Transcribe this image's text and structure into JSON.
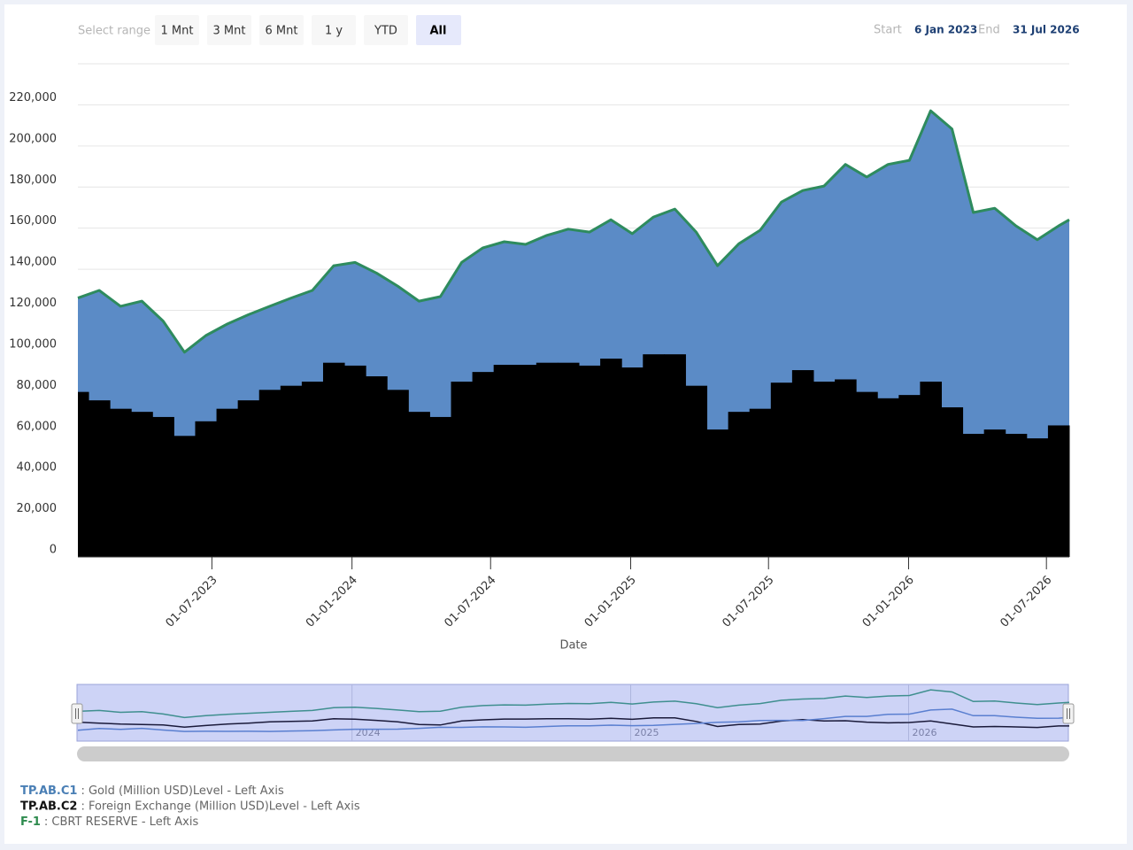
{
  "chart_data": {
    "type": "stock",
    "range_selector": {
      "label": "Select range",
      "buttons": [
        "1 Mnt",
        "3 Mnt",
        "6 Mnt",
        "1 y",
        "YTD",
        "All"
      ],
      "selected": 5
    },
    "start_label": "Start",
    "start": "6 Jan 2023",
    "end_label": "End",
    "end": "31 Jul 2026",
    "x_label": "Date",
    "x": [
      "2023-01-06",
      "2023-02-03",
      "2023-03-03",
      "2023-03-31",
      "2023-04-28",
      "2023-05-26",
      "2023-06-23",
      "2023-07-21",
      "2023-08-18",
      "2023-09-15",
      "2023-10-13",
      "2023-11-10",
      "2023-12-08",
      "2024-01-05",
      "2024-02-02",
      "2024-03-01",
      "2024-03-29",
      "2024-04-26",
      "2024-05-24",
      "2024-06-21",
      "2024-07-19",
      "2024-08-16",
      "2024-09-13",
      "2024-10-11",
      "2024-11-08",
      "2024-12-06",
      "2025-01-03",
      "2025-01-31",
      "2025-02-28",
      "2025-03-28",
      "2025-04-25",
      "2025-05-23",
      "2025-06-20",
      "2025-07-18",
      "2025-08-15",
      "2025-09-12",
      "2025-10-10",
      "2025-11-07",
      "2025-12-05",
      "2026-01-02",
      "2026-01-30",
      "2026-02-27",
      "2026-03-27",
      "2026-04-24",
      "2026-05-22",
      "2026-06-19",
      "2026-07-17",
      "2026-07-31"
    ],
    "xlim": [
      "2023-01-06",
      "2026-07-31"
    ],
    "xticks": [
      {
        "value": "2023-07-01",
        "label": "01-07-2023"
      },
      {
        "value": "2024-01-01",
        "label": "01-01-2024"
      },
      {
        "value": "2024-07-01",
        "label": "01-07-2024"
      },
      {
        "value": "2025-01-01",
        "label": "01-01-2025"
      },
      {
        "value": "2025-07-01",
        "label": "01-07-2025"
      },
      {
        "value": "2026-01-01",
        "label": "01-01-2026"
      },
      {
        "value": "2026-07-01",
        "label": "01-07-2026"
      }
    ],
    "navigator_ticks": [
      {
        "value": "2024-01-01",
        "label": "2024"
      },
      {
        "value": "2025-01-01",
        "label": "2025"
      },
      {
        "value": "2026-01-01",
        "label": "2026"
      }
    ],
    "ylim": [
      0,
      240000
    ],
    "yticks": [
      0,
      {
        "value": 20000,
        "label": "20,000"
      },
      {
        "value": 40000,
        "label": "40,000"
      },
      {
        "value": 60000,
        "label": "60,000"
      },
      {
        "value": 80000,
        "label": "80,000"
      },
      {
        "value": 100000,
        "label": "100,000"
      },
      {
        "value": 120000,
        "label": "120,000"
      },
      {
        "value": 140000,
        "label": "140,000"
      },
      {
        "value": 160000,
        "label": "160,000"
      },
      {
        "value": 180000,
        "label": "180,000"
      },
      {
        "value": 200000,
        "label": "200,000"
      },
      {
        "value": 220000,
        "label": "220,000"
      }
    ],
    "grid": true,
    "series": [
      {
        "name": "TP.AB.C1",
        "description": ": Gold (Million USD)Level - Left Axis",
        "type": "area",
        "color": "#5b8bc6",
        "legend_color": "#4a7fb5",
        "values": [
          45700,
          53500,
          49900,
          53900,
          46700,
          40700,
          41700,
          41200,
          41700,
          40700,
          42700,
          44400,
          47200,
          50200,
          50300,
          50500,
          53900,
          58600,
          58000,
          60400,
          59900,
          58600,
          62000,
          65000,
          65000,
          67600,
          65100,
          66800,
          70700,
          74800,
          79700,
          81800,
          86900,
          87900,
          87400,
          95200,
          104600,
          104600,
          113800,
          114200,
          131800,
          135500,
          107700,
          107700,
          101200,
          96700,
          97100,
          100100
        ]
      },
      {
        "name": "TP.AB.C2",
        "description": ": Foreign Exchange (Million USD)Level - Left Axis",
        "type": "column",
        "color": "#000000",
        "legend_color": "#111111",
        "values": [
          80300,
          76200,
          72100,
          70600,
          68100,
          58900,
          66000,
          72100,
          76200,
          81300,
          83300,
          85300,
          94500,
          93100,
          87900,
          81300,
          70600,
          68100,
          85300,
          90000,
          93500,
          93500,
          94500,
          94500,
          93100,
          96500,
          92200,
          98600,
          98600,
          83300,
          62000,
          70600,
          72100,
          84800,
          90900,
          85300,
          86400,
          80300,
          77200,
          78800,
          85300,
          72800,
          59900,
          62000,
          59900,
          57700,
          64000,
          64000
        ]
      },
      {
        "name": "F-1",
        "description": ": CBRT RESERVE - Left Axis",
        "type": "line",
        "color": "#2e8b5e",
        "legend_color": "#2e8b4e",
        "values": [
          126000,
          129700,
          122000,
          124500,
          114800,
          99600,
          107700,
          113300,
          117900,
          122000,
          126000,
          129700,
          141700,
          143300,
          138200,
          131800,
          124500,
          126700,
          143300,
          150400,
          153400,
          152100,
          156500,
          159500,
          158100,
          164100,
          157300,
          165400,
          169300,
          158100,
          141700,
          152400,
          159000,
          172700,
          178300,
          180500,
          191000,
          184900,
          191000,
          193000,
          217100,
          208300,
          167600,
          169700,
          161100,
          154400,
          161100,
          164100
        ]
      }
    ]
  }
}
